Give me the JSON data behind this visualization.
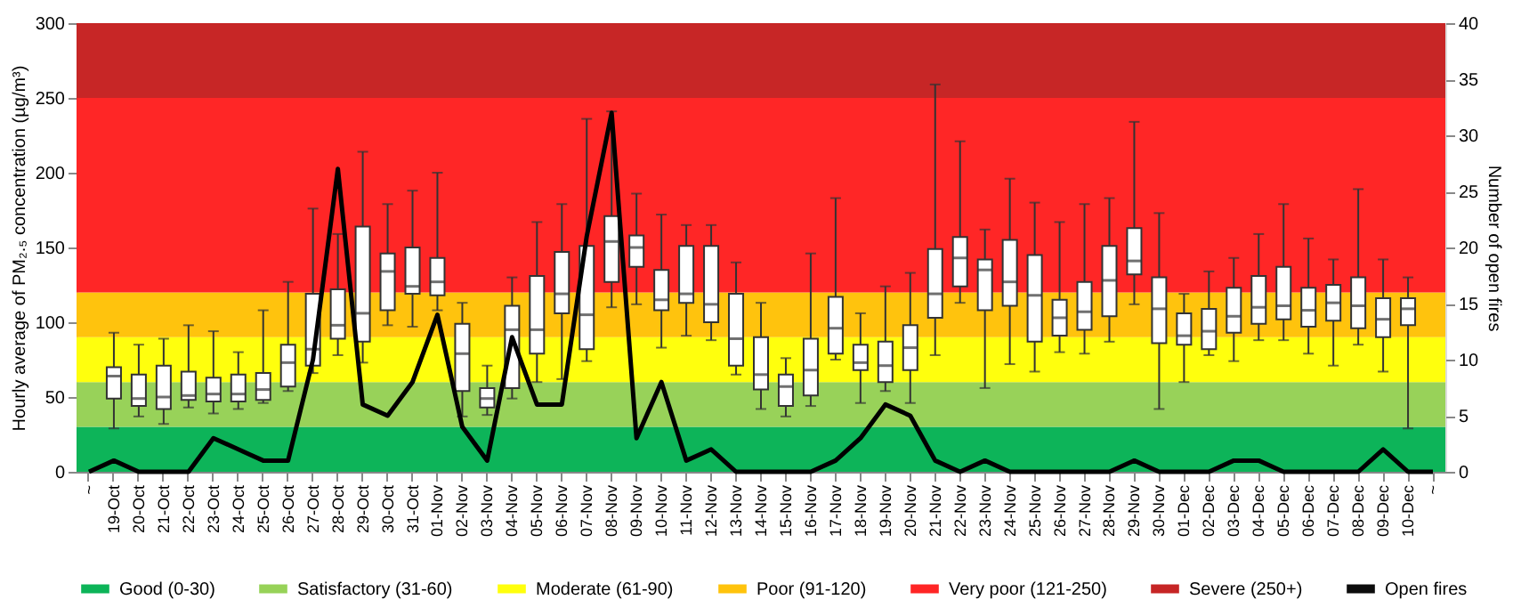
{
  "chart_data": {
    "type": "box",
    "ylabel": "Hourly average of PM₂.₅ concentration (µg/m³)",
    "y2label": "Number of open fires",
    "categories": [
      "~",
      "19-Oct",
      "20-Oct",
      "21-Oct",
      "22-Oct",
      "23-Oct",
      "24-Oct",
      "25-Oct",
      "26-Oct",
      "27-Oct",
      "28-Oct",
      "29-Oct",
      "30-Oct",
      "31-Oct",
      "01-Nov",
      "02-Nov",
      "03-Nov",
      "04-Nov",
      "05-Nov",
      "06-Nov",
      "07-Nov",
      "08-Nov",
      "09-Nov",
      "10-Nov",
      "11-Nov",
      "12-Nov",
      "13-Nov",
      "14-Nov",
      "15-Nov",
      "16-Nov",
      "17-Nov",
      "18-Nov",
      "19-Nov",
      "20-Nov",
      "21-Nov",
      "22-Nov",
      "23-Nov",
      "24-Nov",
      "25-Nov",
      "26-Nov",
      "27-Nov",
      "28-Nov",
      "29-Nov",
      "30-Nov",
      "01-Dec",
      "02-Dec",
      "03-Dec",
      "04-Dec",
      "05-Dec",
      "06-Dec",
      "07-Dec",
      "08-Dec",
      "09-Dec",
      "10-Dec",
      "~"
    ],
    "boxes": [
      null,
      {
        "low": 29,
        "q1": 49,
        "median": 64,
        "q3": 70,
        "high": 93
      },
      {
        "low": 37,
        "q1": 44,
        "median": 49,
        "q3": 65,
        "high": 85
      },
      {
        "low": 32,
        "q1": 42,
        "median": 50,
        "q3": 71,
        "high": 89
      },
      {
        "low": 43,
        "q1": 48,
        "median": 51,
        "q3": 67,
        "high": 98
      },
      {
        "low": 39,
        "q1": 47,
        "median": 52,
        "q3": 63,
        "high": 94
      },
      {
        "low": 42,
        "q1": 47,
        "median": 52,
        "q3": 65,
        "high": 80
      },
      {
        "low": 46,
        "q1": 48,
        "median": 55,
        "q3": 66,
        "high": 108
      },
      {
        "low": 54,
        "q1": 57,
        "median": 73,
        "q3": 85,
        "high": 127
      },
      {
        "low": 66,
        "q1": 71,
        "median": 82,
        "q3": 119,
        "high": 176
      },
      {
        "low": 78,
        "q1": 89,
        "median": 98,
        "q3": 122,
        "high": 159
      },
      {
        "low": 73,
        "q1": 87,
        "median": 106,
        "q3": 164,
        "high": 214
      },
      {
        "low": 98,
        "q1": 108,
        "median": 134,
        "q3": 146,
        "high": 179
      },
      {
        "low": 97,
        "q1": 119,
        "median": 124,
        "q3": 150,
        "high": 188
      },
      {
        "low": 108,
        "q1": 118,
        "median": 127,
        "q3": 143,
        "high": 200
      },
      {
        "low": 37,
        "q1": 54,
        "median": 79,
        "q3": 99,
        "high": 113
      },
      {
        "low": 38,
        "q1": 43,
        "median": 49,
        "q3": 56,
        "high": 71
      },
      {
        "low": 49,
        "q1": 56,
        "median": 95,
        "q3": 111,
        "high": 130
      },
      {
        "low": 60,
        "q1": 79,
        "median": 95,
        "q3": 131,
        "high": 167
      },
      {
        "low": 62,
        "q1": 106,
        "median": 119,
        "q3": 147,
        "high": 179
      },
      {
        "low": 74,
        "q1": 82,
        "median": 105,
        "q3": 151,
        "high": 236
      },
      {
        "low": 110,
        "q1": 127,
        "median": 154,
        "q3": 171,
        "high": 241
      },
      {
        "low": 112,
        "q1": 137,
        "median": 150,
        "q3": 158,
        "high": 186
      },
      {
        "low": 83,
        "q1": 108,
        "median": 115,
        "q3": 135,
        "high": 172
      },
      {
        "low": 91,
        "q1": 113,
        "median": 119,
        "q3": 151,
        "high": 165
      },
      {
        "low": 88,
        "q1": 100,
        "median": 112,
        "q3": 151,
        "high": 165
      },
      {
        "low": 65,
        "q1": 71,
        "median": 89,
        "q3": 119,
        "high": 140
      },
      {
        "low": 42,
        "q1": 55,
        "median": 65,
        "q3": 90,
        "high": 113
      },
      {
        "low": 37,
        "q1": 44,
        "median": 57,
        "q3": 65,
        "high": 76
      },
      {
        "low": 44,
        "q1": 51,
        "median": 68,
        "q3": 89,
        "high": 146
      },
      {
        "low": 75,
        "q1": 79,
        "median": 96,
        "q3": 117,
        "high": 183
      },
      {
        "low": 46,
        "q1": 68,
        "median": 73,
        "q3": 85,
        "high": 106
      },
      {
        "low": 54,
        "q1": 60,
        "median": 71,
        "q3": 87,
        "high": 124
      },
      {
        "low": 46,
        "q1": 68,
        "median": 83,
        "q3": 98,
        "high": 133
      },
      {
        "low": 78,
        "q1": 103,
        "median": 119,
        "q3": 149,
        "high": 259
      },
      {
        "low": 113,
        "q1": 124,
        "median": 143,
        "q3": 157,
        "high": 221
      },
      {
        "low": 56,
        "q1": 108,
        "median": 135,
        "q3": 142,
        "high": 162
      },
      {
        "low": 72,
        "q1": 111,
        "median": 127,
        "q3": 155,
        "high": 196
      },
      {
        "low": 67,
        "q1": 87,
        "median": 118,
        "q3": 145,
        "high": 180
      },
      {
        "low": 80,
        "q1": 91,
        "median": 103,
        "q3": 115,
        "high": 167
      },
      {
        "low": 79,
        "q1": 95,
        "median": 107,
        "q3": 127,
        "high": 179
      },
      {
        "low": 87,
        "q1": 104,
        "median": 128,
        "q3": 151,
        "high": 183
      },
      {
        "low": 112,
        "q1": 132,
        "median": 141,
        "q3": 163,
        "high": 234
      },
      {
        "low": 42,
        "q1": 86,
        "median": 109,
        "q3": 130,
        "high": 173
      },
      {
        "low": 60,
        "q1": 85,
        "median": 91,
        "q3": 106,
        "high": 119
      },
      {
        "low": 78,
        "q1": 82,
        "median": 94,
        "q3": 109,
        "high": 134
      },
      {
        "low": 74,
        "q1": 93,
        "median": 104,
        "q3": 123,
        "high": 143
      },
      {
        "low": 88,
        "q1": 99,
        "median": 110,
        "q3": 131,
        "high": 159
      },
      {
        "low": 88,
        "q1": 102,
        "median": 111,
        "q3": 137,
        "high": 179
      },
      {
        "low": 79,
        "q1": 97,
        "median": 108,
        "q3": 123,
        "high": 156
      },
      {
        "low": 71,
        "q1": 101,
        "median": 113,
        "q3": 125,
        "high": 142
      },
      {
        "low": 85,
        "q1": 96,
        "median": 111,
        "q3": 130,
        "high": 189
      },
      {
        "low": 67,
        "q1": 90,
        "median": 102,
        "q3": 116,
        "high": 142
      },
      {
        "low": 29,
        "q1": 98,
        "median": 109,
        "q3": 116,
        "high": 130
      },
      null
    ],
    "series": [
      {
        "name": "Open fires",
        "type": "line",
        "axis": "y2",
        "color": "#000000",
        "values": [
          0,
          1,
          0,
          0,
          0,
          3,
          2,
          1,
          1,
          10,
          27,
          6,
          5,
          8,
          14,
          4,
          1,
          12,
          6,
          6,
          21,
          32,
          3,
          8,
          1,
          2,
          0,
          0,
          0,
          0,
          1,
          3,
          6,
          5,
          1,
          0,
          1,
          0,
          0,
          0,
          0,
          0,
          1,
          0,
          0,
          0,
          1,
          1,
          0,
          0,
          0,
          0,
          2,
          0,
          0
        ]
      }
    ],
    "bands": [
      {
        "axis": "y",
        "from": 0,
        "to": 30,
        "label": "Good (0-30)",
        "color": "#00b050"
      },
      {
        "axis": "y",
        "from": 30,
        "to": 60,
        "label": "Satisfactory (31-60)",
        "color": "#92d050"
      },
      {
        "axis": "y",
        "from": 60,
        "to": 90,
        "label": "Moderate (61-90)",
        "color": "#ffff00"
      },
      {
        "axis": "y",
        "from": 90,
        "to": 120,
        "label": "Poor (91-120)",
        "color": "#ffc000"
      },
      {
        "axis": "y",
        "from": 120,
        "to": 250,
        "label": "Very poor (121-250)",
        "color": "#ff1a1a"
      },
      {
        "axis": "y",
        "from": 250,
        "to": 300,
        "label": "Severe (250+)",
        "color": "#c41a1a"
      }
    ],
    "ylim": [
      0,
      300
    ],
    "yticks": [
      0,
      50,
      100,
      150,
      200,
      250,
      300
    ],
    "y2lim": [
      0,
      40
    ],
    "y2ticks": [
      0,
      5,
      10,
      15,
      20,
      25,
      30,
      35,
      40
    ],
    "legend": "bottom"
  }
}
